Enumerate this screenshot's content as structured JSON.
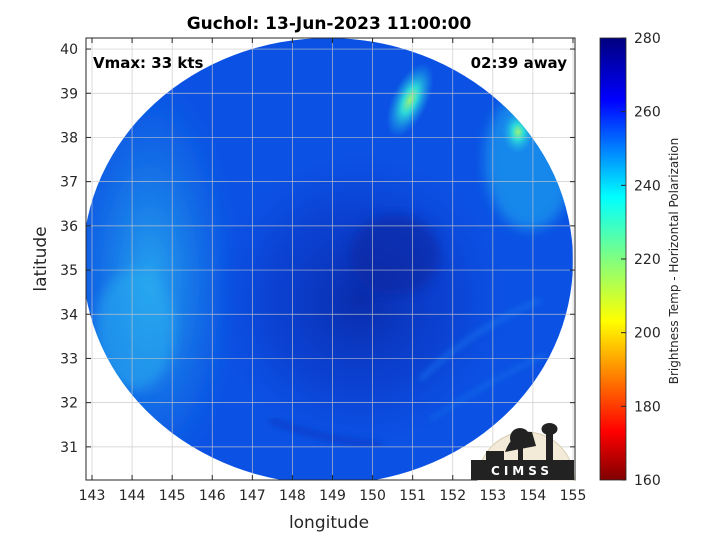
{
  "chart_data": {
    "type": "heatmap",
    "title": "Guchol: 13-Jun-2023 11:00:00",
    "annotations": {
      "vmax": "Vmax: 33 kts",
      "time_away": "02:39 away"
    },
    "xlabel": "longitude",
    "ylabel": "latitude",
    "x_ticks": [
      143,
      144,
      145,
      146,
      147,
      148,
      149,
      150,
      151,
      152,
      153,
      154,
      155
    ],
    "y_ticks": [
      31,
      32,
      33,
      34,
      35,
      36,
      37,
      38,
      39,
      40
    ],
    "xlim": [
      142.85,
      155.05
    ],
    "ylim": [
      30.25,
      40.25
    ],
    "grid": true,
    "colorbar": {
      "label": "Brightness Temp - Horizontal Polarization",
      "ticks": [
        160,
        180,
        200,
        220,
        240,
        260,
        280
      ],
      "range": [
        160,
        280
      ],
      "colormap": "jet"
    },
    "field_description_values": {
      "background_temp": 258,
      "cold_core_center": [
        149.8,
        35.2
      ],
      "cold_core_temp": 270,
      "warm_patches": [
        {
          "lon": 151.0,
          "lat": 39.0,
          "temp": 225
        },
        {
          "lon": 153.7,
          "lat": 38.1,
          "temp": 228
        },
        {
          "lon": 144.2,
          "lat": 34.0,
          "temp": 245
        }
      ]
    },
    "logo_text": "CIMSS"
  },
  "colors": {
    "field_mid": "#0a50e6",
    "field_warm": "#1aa0ee",
    "field_cold": "#0a2fb8"
  }
}
